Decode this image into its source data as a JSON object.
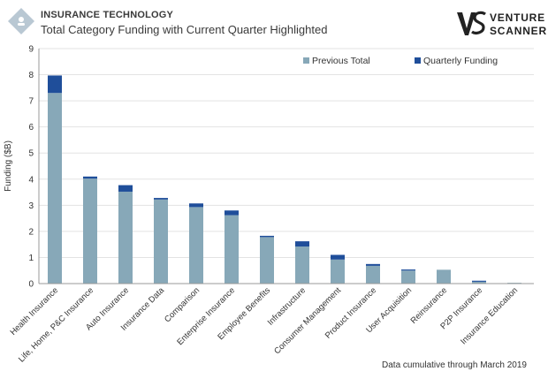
{
  "header": {
    "kicker": "INSURANCE TECHNOLOGY",
    "title": "Total Category Funding with Current Quarter Highlighted",
    "brand_line1": "VENTURE",
    "brand_line2": "SCANNER",
    "icon": "diamond-logo-icon"
  },
  "footnote": "Data cumulative through March 2019",
  "colors": {
    "previous": "#87a8b8",
    "quarterly": "#1f4e9a",
    "grid": "#e3e3e3",
    "axis": "#999999"
  },
  "chart_data": {
    "type": "bar",
    "stacked": true,
    "title": "Total Category Funding with Current Quarter Highlighted",
    "xlabel": "",
    "ylabel": "Funding ($B)",
    "ylim": [
      0,
      9
    ],
    "yticks": [
      0,
      1,
      2,
      3,
      4,
      5,
      6,
      7,
      8,
      9
    ],
    "grid": true,
    "legend_position": "top-right",
    "categories": [
      "Health Insurance",
      "Life, Home, P&C Insurance",
      "Auto Insurance",
      "Insurance Data",
      "Comparison",
      "Enterprise Insurance",
      "Employee Benefits",
      "Infrastructure",
      "Consumer Management",
      "Product Insurance",
      "User Acquisition",
      "Reinsurance",
      "P2P Insurance",
      "Insurance Education"
    ],
    "series": [
      {
        "name": "Previous Total",
        "color": "#87a8b8",
        "values": [
          7.3,
          4.02,
          3.52,
          3.22,
          2.93,
          2.62,
          1.78,
          1.42,
          0.92,
          0.68,
          0.5,
          0.53,
          0.07,
          0.03
        ]
      },
      {
        "name": "Quarterly Funding",
        "color": "#1f4e9a",
        "values": [
          0.67,
          0.08,
          0.25,
          0.06,
          0.14,
          0.18,
          0.05,
          0.2,
          0.18,
          0.07,
          0.04,
          0.0,
          0.04,
          0.0
        ]
      }
    ]
  }
}
